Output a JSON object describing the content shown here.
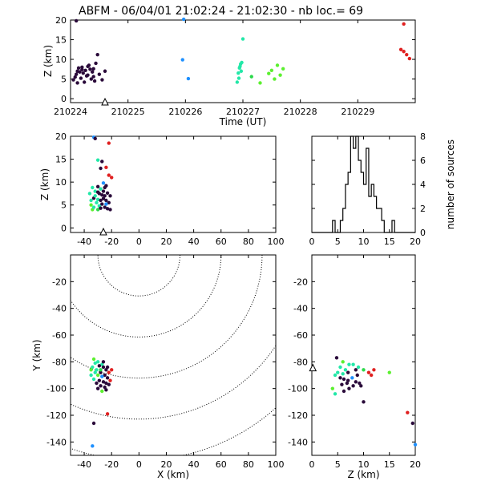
{
  "title": "ABFM - 06/04/01 21:02:24 - 21:02:30 - nb loc.=      69",
  "chart_data": [
    {
      "id": "time-height",
      "type": "scatter",
      "xlabel": "Time (UT)",
      "ylabel": "Z (km)",
      "xlim": [
        210224,
        210230
      ],
      "ylim": [
        -1,
        20
      ],
      "xticks": [
        "210224",
        "210225",
        "210226",
        "210227",
        "210228",
        "210229"
      ],
      "yticks": [
        "0",
        "5",
        "10",
        "15",
        "20"
      ],
      "station_marker": {
        "x": 210224.6,
        "y": -1
      },
      "points": [
        [
          210224.1,
          19.8,
          "#2a0a3a"
        ],
        [
          210224.05,
          4.8,
          "#2a0a3a"
        ],
        [
          210224.08,
          5.5,
          "#2a0a3a"
        ],
        [
          210224.1,
          6.2,
          "#2a0a3a"
        ],
        [
          210224.12,
          7.0,
          "#2a0a3a"
        ],
        [
          210224.14,
          7.8,
          "#2a0a3a"
        ],
        [
          210224.16,
          6.8,
          "#2a0a3a"
        ],
        [
          210224.18,
          5.2,
          "#2a0a3a"
        ],
        [
          210224.2,
          8.0,
          "#2a0a3a"
        ],
        [
          210224.22,
          6.5,
          "#2a0a3a"
        ],
        [
          210224.24,
          4.2,
          "#2a0a3a"
        ],
        [
          210224.26,
          7.2,
          "#2a0a3a"
        ],
        [
          210224.28,
          5.8,
          "#2a0a3a"
        ],
        [
          210224.3,
          6.0,
          "#2a0a3a"
        ],
        [
          210224.32,
          8.5,
          "#2a0a3a"
        ],
        [
          210224.34,
          7.5,
          "#2a0a3a"
        ],
        [
          210224.36,
          5.0,
          "#2a0a3a"
        ],
        [
          210224.38,
          6.8,
          "#2a0a3a"
        ],
        [
          210224.4,
          7.6,
          "#2a0a3a"
        ],
        [
          210224.42,
          4.5,
          "#2a0a3a"
        ],
        [
          210224.44,
          9.0,
          "#2a0a3a"
        ],
        [
          210224.47,
          11.2,
          "#2a0a3a"
        ],
        [
          210224.5,
          6.2,
          "#2a0a3a"
        ],
        [
          210224.55,
          4.8,
          "#2a0a3a"
        ],
        [
          210224.6,
          7.0,
          "#2a0a3a"
        ],
        [
          210224.12,
          4.0,
          "#2a0a3a"
        ],
        [
          210224.2,
          7.4,
          "#2a0a3a"
        ],
        [
          210224.3,
          8.2,
          "#2a0a3a"
        ],
        [
          210224.4,
          5.6,
          "#2a0a3a"
        ],
        [
          210225.97,
          20.2,
          "#1e90ff"
        ],
        [
          210225.95,
          9.9,
          "#1e90ff"
        ],
        [
          210226.05,
          5.1,
          "#1e90ff"
        ],
        [
          210226.9,
          4.2,
          "#22e8a8"
        ],
        [
          210226.92,
          6.5,
          "#22e8a8"
        ],
        [
          210226.94,
          7.8,
          "#22e8a8"
        ],
        [
          210226.96,
          8.8,
          "#22e8a8"
        ],
        [
          210226.98,
          9.2,
          "#22e8a8"
        ],
        [
          210227.0,
          15.2,
          "#22e8a8"
        ],
        [
          210226.93,
          5.2,
          "#22e8a8"
        ],
        [
          210226.97,
          7.0,
          "#22e8a8"
        ],
        [
          210226.95,
          8.2,
          "#22e8a8"
        ],
        [
          210227.15,
          5.6,
          "#2bd84a"
        ],
        [
          210227.3,
          4.0,
          "#5cf030"
        ],
        [
          210227.45,
          6.4,
          "#5cf030"
        ],
        [
          210227.5,
          7.2,
          "#5cf030"
        ],
        [
          210227.55,
          5.0,
          "#5cf030"
        ],
        [
          210227.6,
          8.5,
          "#5cf030"
        ],
        [
          210227.65,
          6.0,
          "#5cf030"
        ],
        [
          210227.7,
          7.6,
          "#5cf030"
        ],
        [
          210229.8,
          19.0,
          "#e02020"
        ],
        [
          210229.75,
          12.5,
          "#e02020"
        ],
        [
          210229.8,
          12.0,
          "#e02020"
        ],
        [
          210229.85,
          11.2,
          "#e02020"
        ],
        [
          210229.9,
          10.2,
          "#e02020"
        ]
      ]
    },
    {
      "id": "x-height",
      "type": "scatter",
      "xlabel": "",
      "ylabel": "Z (km)",
      "xlim": [
        -50,
        100
      ],
      "ylim": [
        -1,
        20
      ],
      "xticks": [
        "-40",
        "-20",
        "0",
        "20",
        "40",
        "60",
        "80",
        "100"
      ],
      "yticks": [
        "0",
        "5",
        "10",
        "15",
        "20"
      ],
      "station_marker": {
        "x": -26,
        "y": -1
      },
      "points": [
        [
          -33,
          19.8,
          "#1e90ff"
        ],
        [
          -32,
          19.5,
          "#2a0a3a"
        ],
        [
          -22,
          18.5,
          "#e02020"
        ],
        [
          -27,
          14.5,
          "#2a0a3a"
        ],
        [
          -28,
          13.0,
          "#2a0a3a"
        ],
        [
          -30,
          14.8,
          "#22e8a8"
        ],
        [
          -24,
          13.2,
          "#e02020"
        ],
        [
          -22,
          11.5,
          "#e02020"
        ],
        [
          -20,
          11.0,
          "#e02020"
        ],
        [
          -26,
          9.8,
          "#1e90ff"
        ],
        [
          -24,
          9.2,
          "#2a0a3a"
        ],
        [
          -30,
          9.0,
          "#2a0a3a"
        ],
        [
          -28,
          8.5,
          "#22e8a8"
        ],
        [
          -34,
          8.8,
          "#22e8a8"
        ],
        [
          -32,
          8.0,
          "#22e8a8"
        ],
        [
          -36,
          7.5,
          "#22e8a8"
        ],
        [
          -30,
          7.8,
          "#2a0a3a"
        ],
        [
          -27,
          7.2,
          "#2a0a3a"
        ],
        [
          -25,
          7.0,
          "#2a0a3a"
        ],
        [
          -23,
          7.6,
          "#2a0a3a"
        ],
        [
          -21,
          7.0,
          "#2a0a3a"
        ],
        [
          -33,
          6.5,
          "#2a0a3a"
        ],
        [
          -30,
          6.2,
          "#22e8a8"
        ],
        [
          -28,
          6.0,
          "#2a0a3a"
        ],
        [
          -26,
          6.4,
          "#2a0a3a"
        ],
        [
          -24,
          6.0,
          "#2a0a3a"
        ],
        [
          -22,
          5.5,
          "#2a0a3a"
        ],
        [
          -35,
          5.0,
          "#5cf030"
        ],
        [
          -31,
          5.5,
          "#22e8a8"
        ],
        [
          -29,
          4.8,
          "#22e8a8"
        ],
        [
          -27,
          5.2,
          "#2a0a3a"
        ],
        [
          -25,
          4.5,
          "#2a0a3a"
        ],
        [
          -23,
          4.2,
          "#2a0a3a"
        ],
        [
          -34,
          4.0,
          "#5cf030"
        ],
        [
          -30,
          4.0,
          "#2bd84a"
        ],
        [
          -21,
          4.0,
          "#2a0a3a"
        ],
        [
          -28,
          4.3,
          "#2a0a3a"
        ],
        [
          -26,
          8.0,
          "#2a0a3a"
        ],
        [
          -32,
          7.0,
          "#22e8a8"
        ],
        [
          -25,
          8.8,
          "#2a0a3a"
        ],
        [
          -29,
          7.5,
          "#2a0a3a"
        ],
        [
          -24,
          5.2,
          "#1e90ff"
        ],
        [
          -35,
          6.0,
          "#22e8a8"
        ],
        [
          -33,
          4.5,
          "#22e8a8"
        ]
      ]
    },
    {
      "id": "height-histogram",
      "type": "bar",
      "xlabel": "",
      "ylabel": "number of sources",
      "xlim": [
        0,
        20
      ],
      "ylim": [
        0,
        8
      ],
      "xticks": [
        "0",
        "5",
        "10",
        "15",
        "20"
      ],
      "yticks": [
        "0",
        "2",
        "4",
        "6",
        "8"
      ],
      "bin_width": 0.5,
      "bins_start": 0,
      "values": [
        0,
        0,
        0,
        0,
        0,
        0,
        0,
        0,
        1,
        0,
        0,
        1,
        2,
        4,
        5,
        8,
        7,
        8,
        6,
        5,
        4,
        7,
        3,
        4,
        3,
        2,
        2,
        1,
        0,
        0,
        0,
        1,
        0,
        0,
        0,
        0,
        0,
        0,
        0,
        0
      ]
    },
    {
      "id": "plan-view",
      "type": "scatter",
      "xlabel": "X (km)",
      "ylabel": "Y (km)",
      "xlim": [
        -50,
        100
      ],
      "ylim": [
        -150,
        0
      ],
      "xticks": [
        "-40",
        "-20",
        "0",
        "20",
        "40",
        "60",
        "80",
        "100"
      ],
      "yticks": [
        "-140",
        "-120",
        "-100",
        "-80",
        "-60",
        "-40",
        "-20"
      ],
      "range_circles_km": [
        30,
        60,
        90,
        120,
        150
      ],
      "points": [
        [
          -33,
          -78,
          "#5cf030"
        ],
        [
          -30,
          -80,
          "#22e8a8"
        ],
        [
          -27,
          -82,
          "#22e8a8"
        ],
        [
          -34,
          -84,
          "#22e8a8"
        ],
        [
          -31,
          -86,
          "#22e8a8"
        ],
        [
          -29,
          -83,
          "#2a0a3a"
        ],
        [
          -26,
          -84,
          "#2a0a3a"
        ],
        [
          -24,
          -86,
          "#2a0a3a"
        ],
        [
          -32,
          -88,
          "#22e8a8"
        ],
        [
          -28,
          -88,
          "#2a0a3a"
        ],
        [
          -25,
          -90,
          "#2a0a3a"
        ],
        [
          -22,
          -88,
          "#e02020"
        ],
        [
          -20,
          -86,
          "#e02020"
        ],
        [
          -35,
          -90,
          "#22e8a8"
        ],
        [
          -30,
          -90,
          "#5cf030"
        ],
        [
          -27,
          -91,
          "#1e90ff"
        ],
        [
          -23,
          -92,
          "#2a0a3a"
        ],
        [
          -33,
          -93,
          "#22e8a8"
        ],
        [
          -29,
          -94,
          "#2a0a3a"
        ],
        [
          -26,
          -95,
          "#2a0a3a"
        ],
        [
          -24,
          -96,
          "#2a0a3a"
        ],
        [
          -31,
          -96,
          "#2a0a3a"
        ],
        [
          -28,
          -98,
          "#2a0a3a"
        ],
        [
          -25,
          -99,
          "#2a0a3a"
        ],
        [
          -22,
          -97,
          "#2a0a3a"
        ],
        [
          -30,
          -100,
          "#2a0a3a"
        ],
        [
          -27,
          -102,
          "#5cf030"
        ],
        [
          -24,
          -101,
          "#2a0a3a"
        ],
        [
          -21,
          -94,
          "#e02020"
        ],
        [
          -28,
          -86,
          "#2bd84a"
        ],
        [
          -32,
          -81,
          "#22e8a8"
        ],
        [
          -26,
          -80,
          "#2a0a3a"
        ],
        [
          -35,
          -86,
          "#5cf030"
        ],
        [
          -23,
          -84,
          "#2a0a3a"
        ],
        [
          -23,
          -119,
          "#e02020"
        ],
        [
          -33,
          -126,
          "#2a0a3a"
        ],
        [
          -34,
          -143,
          "#1e90ff"
        ]
      ]
    },
    {
      "id": "z-y-view",
      "type": "scatter",
      "xlabel": "Z (km)",
      "ylabel": "",
      "xlim": [
        0,
        20
      ],
      "ylim": [
        -150,
        0
      ],
      "xticks": [
        "0",
        "5",
        "10",
        "15",
        "20"
      ],
      "yticks": [
        "-140",
        "-120",
        "-100",
        "-80",
        "-60",
        "-40",
        "-20"
      ],
      "station_marker": {
        "x": 0.2,
        "y": -85
      },
      "points": [
        [
          4.8,
          -77,
          "#2a0a3a"
        ],
        [
          6.0,
          -80,
          "#5cf030"
        ],
        [
          7.2,
          -82,
          "#22e8a8"
        ],
        [
          5.5,
          -84,
          "#22e8a8"
        ],
        [
          8.0,
          -82,
          "#22e8a8"
        ],
        [
          9.0,
          -84,
          "#22e8a8"
        ],
        [
          6.5,
          -86,
          "#22e8a8"
        ],
        [
          7.0,
          -88,
          "#2a0a3a"
        ],
        [
          8.5,
          -86,
          "#2a0a3a"
        ],
        [
          10.0,
          -86,
          "#2bd84a"
        ],
        [
          11.0,
          -88,
          "#e02020"
        ],
        [
          12.0,
          -86,
          "#e02020"
        ],
        [
          11.5,
          -90,
          "#e02020"
        ],
        [
          15.0,
          -88,
          "#5cf030"
        ],
        [
          4.5,
          -90,
          "#22e8a8"
        ],
        [
          5.5,
          -92,
          "#2a0a3a"
        ],
        [
          6.2,
          -93,
          "#2a0a3a"
        ],
        [
          7.0,
          -94,
          "#2a0a3a"
        ],
        [
          7.8,
          -92,
          "#1e90ff"
        ],
        [
          8.5,
          -95,
          "#2a0a3a"
        ],
        [
          9.2,
          -96,
          "#2a0a3a"
        ],
        [
          6.8,
          -96,
          "#2a0a3a"
        ],
        [
          5.8,
          -97,
          "#2a0a3a"
        ],
        [
          8.0,
          -98,
          "#2a0a3a"
        ],
        [
          7.2,
          -100,
          "#2a0a3a"
        ],
        [
          4.0,
          -100,
          "#5cf030"
        ],
        [
          6.2,
          -102,
          "#2a0a3a"
        ],
        [
          4.5,
          -104,
          "#22e8a8"
        ],
        [
          9.5,
          -98,
          "#2a0a3a"
        ],
        [
          5.0,
          -88,
          "#22e8a8"
        ],
        [
          6.0,
          -89,
          "#22e8a8"
        ],
        [
          8.8,
          -90,
          "#2a0a3a"
        ],
        [
          10.0,
          -110,
          "#2a0a3a"
        ],
        [
          18.5,
          -118,
          "#e02020"
        ],
        [
          19.5,
          -126,
          "#2a0a3a"
        ],
        [
          20.0,
          -142,
          "#1e90ff"
        ]
      ]
    }
  ]
}
